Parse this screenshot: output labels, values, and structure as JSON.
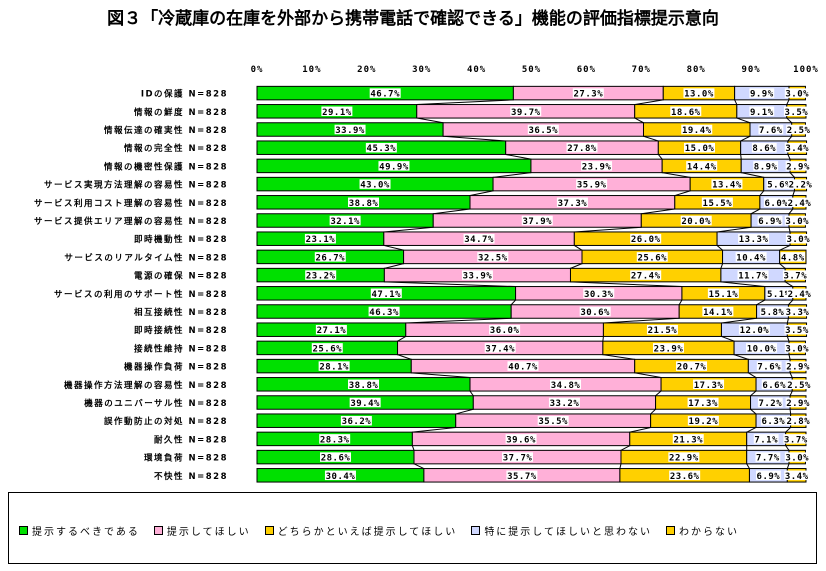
{
  "title": "図３「冷蔵庫の在庫を外部から携帯電話で確認できる」機能の評価指標提示意向",
  "chart_data": {
    "type": "bar",
    "orientation": "horizontal",
    "stacked": "percent",
    "xlim": [
      0,
      100
    ],
    "ticks": [
      "0%",
      "10%",
      "20%",
      "30%",
      "40%",
      "50%",
      "60%",
      "70%",
      "80%",
      "90%",
      "100%"
    ],
    "legend_position": "bottom",
    "colors": [
      "#00e000",
      "#ffb0d8",
      "#ffd000",
      "#d0d8ff",
      "#ffd000"
    ],
    "series_names": [
      "提示するべきである",
      "提示してほしい",
      "どちらかといえば提示してほしい",
      "特に提示してほしいと思わない",
      "わからない"
    ],
    "categories": [
      "IDの保護 N=828",
      "情報の鮮度 N=828",
      "情報伝達の確実性 N=828",
      "情報の完全性 N=828",
      "情報の機密性保護 N=828",
      "サービス実現方法理解の容易性 N=828",
      "サービス利用コスト理解の容易性 N=828",
      "サービス提供エリア理解の容易性 N=828",
      "即時機動性 N=828",
      "サービスのリアルタイム性 N=828",
      "電源の確保 N=828",
      "サービスの利用のサポート性 N=828",
      "相互接続性 N=828",
      "即時接続性 N=828",
      "接続性維持 N=828",
      "機器操作負荷 N=828",
      "機器操作方法理解の容易性 N=828",
      "機器のユニバーサル性 N=828",
      "誤作動防止の対処 N=828",
      "耐久性 N=828",
      "環境負荷 N=828",
      "不快性 N=828"
    ],
    "values": [
      [
        46.7,
        27.3,
        13.0,
        9.9,
        3.0
      ],
      [
        29.1,
        39.7,
        18.6,
        9.1,
        3.5
      ],
      [
        33.9,
        36.5,
        19.4,
        7.6,
        2.5
      ],
      [
        45.3,
        27.8,
        15.0,
        8.6,
        3.4
      ],
      [
        49.9,
        23.9,
        14.4,
        8.9,
        2.9
      ],
      [
        43.0,
        35.9,
        13.4,
        5.6,
        2.2
      ],
      [
        38.8,
        37.3,
        15.5,
        6.0,
        2.4
      ],
      [
        32.1,
        37.9,
        20.0,
        6.9,
        3.0
      ],
      [
        23.1,
        34.7,
        26.0,
        13.3,
        3.0
      ],
      [
        26.7,
        32.5,
        25.6,
        10.4,
        4.8
      ],
      [
        23.2,
        33.9,
        27.4,
        11.7,
        3.7
      ],
      [
        47.1,
        30.3,
        15.1,
        5.1,
        2.4
      ],
      [
        46.3,
        30.6,
        14.1,
        5.8,
        3.3
      ],
      [
        27.1,
        36.0,
        21.5,
        12.0,
        3.5
      ],
      [
        25.6,
        37.4,
        23.9,
        10.0,
        3.0
      ],
      [
        28.1,
        40.7,
        20.7,
        7.6,
        2.9
      ],
      [
        38.8,
        34.8,
        17.3,
        6.6,
        2.5
      ],
      [
        39.4,
        33.2,
        17.3,
        7.2,
        2.9
      ],
      [
        36.2,
        35.5,
        19.2,
        6.3,
        2.8
      ],
      [
        28.3,
        39.6,
        21.3,
        7.1,
        3.7
      ],
      [
        28.6,
        37.7,
        22.9,
        7.7,
        3.0
      ],
      [
        30.4,
        35.7,
        23.6,
        6.9,
        3.4
      ]
    ],
    "labels": [
      [
        "46.7%",
        "27.3%",
        "13.0%",
        "9.9%",
        "3.0%"
      ],
      [
        "29.1%",
        "39.7%",
        "18.6%",
        "9.1%",
        "3.5%"
      ],
      [
        "33.9%",
        "36.5%",
        "19.4%",
        "7.6%",
        "2.5%"
      ],
      [
        "45.3%",
        "27.8%",
        "15.0%",
        "8.6%",
        "3.4%"
      ],
      [
        "49.9%",
        "23.9%",
        "14.4%",
        "8.9%",
        "2.9%"
      ],
      [
        "43.0%",
        "35.9%",
        "13.4%",
        "5.6%",
        "2.2%"
      ],
      [
        "38.8%",
        "37.3%",
        "15.5%",
        "6.0%",
        "2.4%"
      ],
      [
        "32.1%",
        "37.9%",
        "20.0%",
        "6.9%",
        "3.0%"
      ],
      [
        "23.1%",
        "34.7%",
        "26.0%",
        "13.3%",
        "3.0%"
      ],
      [
        "26.7%",
        "32.5%",
        "25.6%",
        "10.4%",
        "4.8%"
      ],
      [
        "23.2%",
        "33.9%",
        "27.4%",
        "11.7%",
        "3.7%"
      ],
      [
        "47.1%",
        "30.3%",
        "15.1%",
        "5.1%",
        "2.4%"
      ],
      [
        "46.3%",
        "30.6%",
        "14.1%",
        "5.8%",
        "3.3%"
      ],
      [
        "27.1%",
        "36.0%",
        "21.5%",
        "12.0%",
        "3.5%"
      ],
      [
        "25.6%",
        "37.4%",
        "23.9%",
        "10.0%",
        "3.0%"
      ],
      [
        "28.1%",
        "40.7%",
        "20.7%",
        "7.6%",
        "2.9%"
      ],
      [
        "38.8%",
        "34.8%",
        "17.3%",
        "6.6%",
        "2.5%"
      ],
      [
        "39.4%",
        "33.2%",
        "17.3%",
        "7.2%",
        "2.9%"
      ],
      [
        "36.2%",
        "35.5%",
        "19.2%",
        "6.3%",
        "2.8%"
      ],
      [
        "28.3%",
        "39.6%",
        "21.3%",
        "7.1%",
        "3.7%"
      ],
      [
        "28.6%",
        "37.7%",
        "22.9%",
        "7.7%",
        "3.0%"
      ],
      [
        "30.4%",
        "35.7%",
        "23.6%",
        "6.9%",
        "3.4%"
      ]
    ]
  }
}
